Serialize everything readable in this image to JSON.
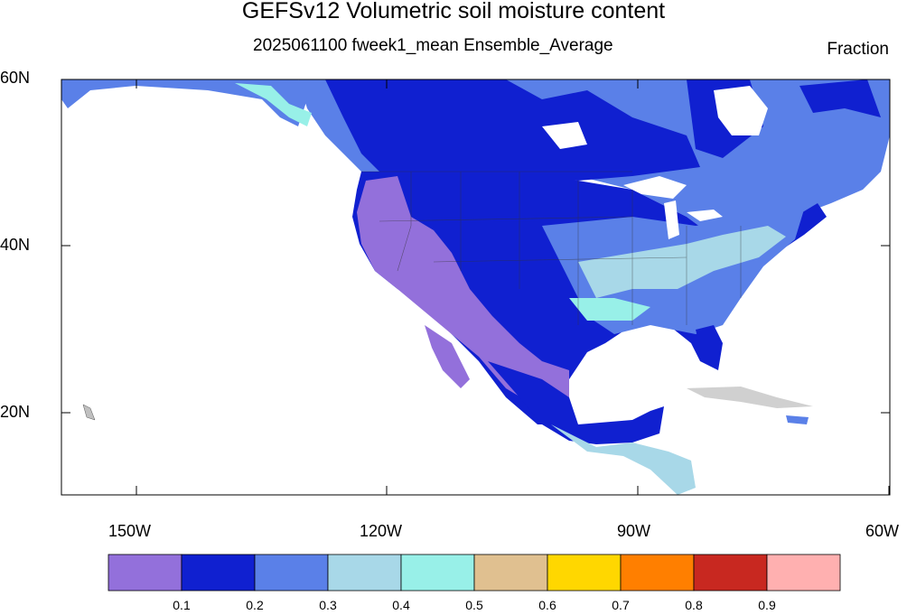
{
  "title": "GEFSv12 Volumetric soil moisture content",
  "subtitle": "2025061100 fweek1_mean Ensemble_Average",
  "units": "Fraction",
  "axes": {
    "lon_labels": [
      "150W",
      "120W",
      "90W",
      "60W"
    ],
    "lat_labels": [
      "60N",
      "40N",
      "20N"
    ]
  },
  "colorbar": {
    "colors": [
      "#9370db",
      "#1020d0",
      "#5a80e8",
      "#a8d8e8",
      "#98f0e8",
      "#e0c090",
      "#ffd700",
      "#ff7f00",
      "#c82820",
      "#ffb0b0"
    ],
    "labels": [
      "0.1",
      "0.2",
      "0.3",
      "0.4",
      "0.5",
      "0.6",
      "0.7",
      "0.8",
      "0.9"
    ]
  }
}
